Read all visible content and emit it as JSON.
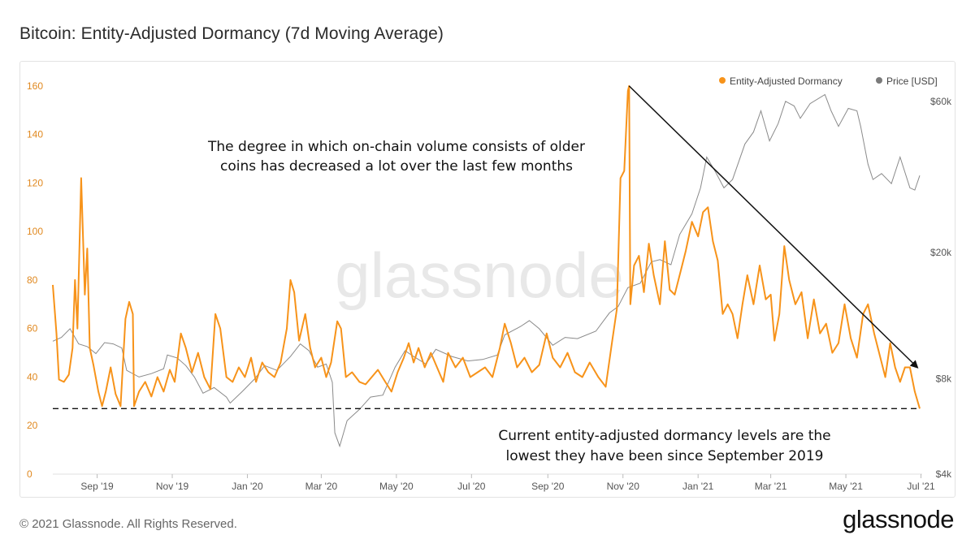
{
  "title": "Bitcoin: Entity-Adjusted Dormancy (7d Moving Average)",
  "footer": "© 2021 Glassnode. All Rights Reserved.",
  "brand": "glassnode",
  "watermark": "glassnode",
  "legend": {
    "items": [
      {
        "label": "Entity-Adjusted Dormancy",
        "color": "#f7931a"
      },
      {
        "label": "Price [USD]",
        "color": "#7a7a7a"
      }
    ],
    "placement": "top-right"
  },
  "annotations": {
    "top_line1": "The degree in which on-chain volume consists of older",
    "top_line2": "coins has decreased a lot over the last few months",
    "bottom_line1": "Current entity-adjusted dormancy levels are the",
    "bottom_line2": "lowest they have been since September 2019"
  },
  "chart_data": {
    "type": "line",
    "x_start": "2019-07-27",
    "x_end": "2021-06-30",
    "x_ticks": [
      {
        "date": "2019-09-01",
        "label": "Sep '19"
      },
      {
        "date": "2019-11-01",
        "label": "Nov '19"
      },
      {
        "date": "2020-01-01",
        "label": "Jan '20"
      },
      {
        "date": "2020-03-01",
        "label": "Mar '20"
      },
      {
        "date": "2020-05-01",
        "label": "May '20"
      },
      {
        "date": "2020-07-01",
        "label": "Jul '20"
      },
      {
        "date": "2020-09-01",
        "label": "Sep '20"
      },
      {
        "date": "2020-11-01",
        "label": "Nov '20"
      },
      {
        "date": "2021-01-01",
        "label": "Jan '21"
      },
      {
        "date": "2021-03-01",
        "label": "Mar '21"
      },
      {
        "date": "2021-05-01",
        "label": "May '21"
      },
      {
        "date": "2021-07-01",
        "label": "Jul '21"
      }
    ],
    "y_left": {
      "min": 0,
      "max": 170,
      "ticks": [
        "0",
        "20",
        "40",
        "60",
        "80",
        "100",
        "120",
        "140",
        "160"
      ]
    },
    "y_right": {
      "scale": "log",
      "min": 4000,
      "max": 80000,
      "ticks": [
        {
          "value": 4000,
          "label": "$4k"
        },
        {
          "value": 8000,
          "label": "$8k"
        },
        {
          "value": 20000,
          "label": "$20k"
        },
        {
          "value": 60000,
          "label": "$60k"
        }
      ]
    },
    "series": [
      {
        "name": "Entity-Adjusted Dormancy",
        "axis": "left",
        "color": "#f7931a",
        "points": [
          [
            "2019-07-27",
            78
          ],
          [
            "2019-07-30",
            58
          ],
          [
            "2019-08-01",
            39
          ],
          [
            "2019-08-05",
            38
          ],
          [
            "2019-08-09",
            41
          ],
          [
            "2019-08-12",
            52
          ],
          [
            "2019-08-14",
            80
          ],
          [
            "2019-08-16",
            60
          ],
          [
            "2019-08-19",
            122
          ],
          [
            "2019-08-22",
            74
          ],
          [
            "2019-08-24",
            93
          ],
          [
            "2019-08-26",
            52
          ],
          [
            "2019-08-29",
            45
          ],
          [
            "2019-09-02",
            34
          ],
          [
            "2019-09-05",
            28
          ],
          [
            "2019-09-08",
            34
          ],
          [
            "2019-09-12",
            44
          ],
          [
            "2019-09-16",
            33
          ],
          [
            "2019-09-20",
            28
          ],
          [
            "2019-09-24",
            64
          ],
          [
            "2019-09-27",
            71
          ],
          [
            "2019-09-30",
            66
          ],
          [
            "2019-10-01",
            28
          ],
          [
            "2019-10-05",
            34
          ],
          [
            "2019-10-10",
            38
          ],
          [
            "2019-10-15",
            32
          ],
          [
            "2019-10-20",
            40
          ],
          [
            "2019-10-25",
            34
          ],
          [
            "2019-10-30",
            43
          ],
          [
            "2019-11-03",
            38
          ],
          [
            "2019-11-08",
            58
          ],
          [
            "2019-11-12",
            52
          ],
          [
            "2019-11-17",
            42
          ],
          [
            "2019-11-22",
            50
          ],
          [
            "2019-11-27",
            40
          ],
          [
            "2019-12-02",
            35
          ],
          [
            "2019-12-06",
            66
          ],
          [
            "2019-12-10",
            60
          ],
          [
            "2019-12-15",
            40
          ],
          [
            "2019-12-20",
            38
          ],
          [
            "2019-12-25",
            44
          ],
          [
            "2019-12-30",
            40
          ],
          [
            "2020-01-04",
            48
          ],
          [
            "2020-01-08",
            38
          ],
          [
            "2020-01-13",
            46
          ],
          [
            "2020-01-18",
            42
          ],
          [
            "2020-01-23",
            40
          ],
          [
            "2020-01-28",
            46
          ],
          [
            "2020-02-02",
            60
          ],
          [
            "2020-02-05",
            80
          ],
          [
            "2020-02-08",
            75
          ],
          [
            "2020-02-12",
            55
          ],
          [
            "2020-02-17",
            66
          ],
          [
            "2020-02-21",
            52
          ],
          [
            "2020-02-25",
            44
          ],
          [
            "2020-03-01",
            48
          ],
          [
            "2020-03-05",
            40
          ],
          [
            "2020-03-09",
            46
          ],
          [
            "2020-03-14",
            63
          ],
          [
            "2020-03-17",
            60
          ],
          [
            "2020-03-21",
            40
          ],
          [
            "2020-03-26",
            42
          ],
          [
            "2020-04-01",
            38
          ],
          [
            "2020-04-06",
            37
          ],
          [
            "2020-04-11",
            40
          ],
          [
            "2020-04-16",
            43
          ],
          [
            "2020-04-22",
            38
          ],
          [
            "2020-04-27",
            34
          ],
          [
            "2020-05-02",
            42
          ],
          [
            "2020-05-07",
            48
          ],
          [
            "2020-05-11",
            54
          ],
          [
            "2020-05-15",
            46
          ],
          [
            "2020-05-19",
            52
          ],
          [
            "2020-05-24",
            44
          ],
          [
            "2020-05-29",
            50
          ],
          [
            "2020-06-03",
            44
          ],
          [
            "2020-06-08",
            38
          ],
          [
            "2020-06-12",
            50
          ],
          [
            "2020-06-18",
            44
          ],
          [
            "2020-06-24",
            48
          ],
          [
            "2020-06-30",
            40
          ],
          [
            "2020-07-06",
            42
          ],
          [
            "2020-07-12",
            44
          ],
          [
            "2020-07-18",
            40
          ],
          [
            "2020-07-24",
            52
          ],
          [
            "2020-07-28",
            62
          ],
          [
            "2020-08-02",
            54
          ],
          [
            "2020-08-07",
            44
          ],
          [
            "2020-08-13",
            48
          ],
          [
            "2020-08-19",
            42
          ],
          [
            "2020-08-25",
            45
          ],
          [
            "2020-08-31",
            58
          ],
          [
            "2020-09-05",
            48
          ],
          [
            "2020-09-11",
            44
          ],
          [
            "2020-09-17",
            50
          ],
          [
            "2020-09-23",
            42
          ],
          [
            "2020-09-29",
            40
          ],
          [
            "2020-10-05",
            46
          ],
          [
            "2020-10-12",
            40
          ],
          [
            "2020-10-18",
            36
          ],
          [
            "2020-10-23",
            54
          ],
          [
            "2020-10-27",
            68
          ],
          [
            "2020-10-30",
            122
          ],
          [
            "2020-11-02",
            125
          ],
          [
            "2020-11-05",
            158
          ],
          [
            "2020-11-06",
            160
          ],
          [
            "2020-11-07",
            70
          ],
          [
            "2020-11-10",
            86
          ],
          [
            "2020-11-14",
            90
          ],
          [
            "2020-11-18",
            75
          ],
          [
            "2020-11-22",
            95
          ],
          [
            "2020-11-26",
            82
          ],
          [
            "2020-12-01",
            70
          ],
          [
            "2020-12-05",
            96
          ],
          [
            "2020-12-09",
            76
          ],
          [
            "2020-12-13",
            74
          ],
          [
            "2020-12-18",
            84
          ],
          [
            "2020-12-22",
            92
          ],
          [
            "2020-12-27",
            104
          ],
          [
            "2021-01-01",
            98
          ],
          [
            "2021-01-05",
            108
          ],
          [
            "2021-01-09",
            110
          ],
          [
            "2021-01-13",
            96
          ],
          [
            "2021-01-17",
            88
          ],
          [
            "2021-01-21",
            66
          ],
          [
            "2021-01-25",
            70
          ],
          [
            "2021-01-29",
            66
          ],
          [
            "2021-02-02",
            56
          ],
          [
            "2021-02-06",
            70
          ],
          [
            "2021-02-10",
            82
          ],
          [
            "2021-02-15",
            70
          ],
          [
            "2021-02-20",
            86
          ],
          [
            "2021-02-25",
            72
          ],
          [
            "2021-03-01",
            74
          ],
          [
            "2021-03-04",
            55
          ],
          [
            "2021-03-08",
            66
          ],
          [
            "2021-03-12",
            94
          ],
          [
            "2021-03-16",
            80
          ],
          [
            "2021-03-21",
            70
          ],
          [
            "2021-03-26",
            75
          ],
          [
            "2021-03-31",
            56
          ],
          [
            "2021-04-05",
            72
          ],
          [
            "2021-04-10",
            58
          ],
          [
            "2021-04-15",
            62
          ],
          [
            "2021-04-20",
            50
          ],
          [
            "2021-04-25",
            54
          ],
          [
            "2021-04-30",
            70
          ],
          [
            "2021-05-05",
            56
          ],
          [
            "2021-05-10",
            48
          ],
          [
            "2021-05-15",
            66
          ],
          [
            "2021-05-19",
            70
          ],
          [
            "2021-05-24",
            58
          ],
          [
            "2021-05-28",
            50
          ],
          [
            "2021-06-02",
            40
          ],
          [
            "2021-06-06",
            54
          ],
          [
            "2021-06-10",
            44
          ],
          [
            "2021-06-14",
            38
          ],
          [
            "2021-06-18",
            44
          ],
          [
            "2021-06-22",
            44
          ],
          [
            "2021-06-26",
            34
          ],
          [
            "2021-06-30",
            27
          ]
        ]
      },
      {
        "name": "Price [USD]",
        "axis": "right",
        "color": "#7a7a7a",
        "points": [
          [
            "2019-07-27",
            10500
          ],
          [
            "2019-08-03",
            10800
          ],
          [
            "2019-08-10",
            11500
          ],
          [
            "2019-08-17",
            10300
          ],
          [
            "2019-08-24",
            10100
          ],
          [
            "2019-08-31",
            9600
          ],
          [
            "2019-09-07",
            10400
          ],
          [
            "2019-09-14",
            10300
          ],
          [
            "2019-09-21",
            10000
          ],
          [
            "2019-09-25",
            8500
          ],
          [
            "2019-10-05",
            8100
          ],
          [
            "2019-10-15",
            8300
          ],
          [
            "2019-10-25",
            8600
          ],
          [
            "2019-10-28",
            9500
          ],
          [
            "2019-11-05",
            9300
          ],
          [
            "2019-11-12",
            8800
          ],
          [
            "2019-11-19",
            8100
          ],
          [
            "2019-11-26",
            7200
          ],
          [
            "2019-12-05",
            7500
          ],
          [
            "2019-12-15",
            7000
          ],
          [
            "2019-12-18",
            6700
          ],
          [
            "2019-12-28",
            7300
          ],
          [
            "2020-01-07",
            8000
          ],
          [
            "2020-01-15",
            8800
          ],
          [
            "2020-01-25",
            8500
          ],
          [
            "2020-02-05",
            9400
          ],
          [
            "2020-02-13",
            10300
          ],
          [
            "2020-02-20",
            9800
          ],
          [
            "2020-02-27",
            8700
          ],
          [
            "2020-03-05",
            8900
          ],
          [
            "2020-03-10",
            7800
          ],
          [
            "2020-03-12",
            5400
          ],
          [
            "2020-03-16",
            4900
          ],
          [
            "2020-03-22",
            5900
          ],
          [
            "2020-04-01",
            6400
          ],
          [
            "2020-04-10",
            7000
          ],
          [
            "2020-04-20",
            7100
          ],
          [
            "2020-04-30",
            8700
          ],
          [
            "2020-05-08",
            9800
          ],
          [
            "2020-05-15",
            9400
          ],
          [
            "2020-05-25",
            8900
          ],
          [
            "2020-06-02",
            9900
          ],
          [
            "2020-06-15",
            9400
          ],
          [
            "2020-06-28",
            9100
          ],
          [
            "2020-07-10",
            9200
          ],
          [
            "2020-07-22",
            9500
          ],
          [
            "2020-07-28",
            11000
          ],
          [
            "2020-08-10",
            11700
          ],
          [
            "2020-08-17",
            12200
          ],
          [
            "2020-08-25",
            11500
          ],
          [
            "2020-09-05",
            10200
          ],
          [
            "2020-09-15",
            10800
          ],
          [
            "2020-09-25",
            10700
          ],
          [
            "2020-10-10",
            11300
          ],
          [
            "2020-10-21",
            12900
          ],
          [
            "2020-10-28",
            13500
          ],
          [
            "2020-11-05",
            15500
          ],
          [
            "2020-11-15",
            16000
          ],
          [
            "2020-11-24",
            18700
          ],
          [
            "2020-12-01",
            19000
          ],
          [
            "2020-12-10",
            18300
          ],
          [
            "2020-12-17",
            22800
          ],
          [
            "2020-12-27",
            26500
          ],
          [
            "2021-01-03",
            32000
          ],
          [
            "2021-01-08",
            40000
          ],
          [
            "2021-01-15",
            36000
          ],
          [
            "2021-01-22",
            32000
          ],
          [
            "2021-01-29",
            34000
          ],
          [
            "2021-02-08",
            44000
          ],
          [
            "2021-02-15",
            48000
          ],
          [
            "2021-02-21",
            56000
          ],
          [
            "2021-02-28",
            45000
          ],
          [
            "2021-03-07",
            51000
          ],
          [
            "2021-03-13",
            60000
          ],
          [
            "2021-03-20",
            58000
          ],
          [
            "2021-03-25",
            53000
          ],
          [
            "2021-04-02",
            59000
          ],
          [
            "2021-04-14",
            63000
          ],
          [
            "2021-04-19",
            56000
          ],
          [
            "2021-04-25",
            50000
          ],
          [
            "2021-05-03",
            57000
          ],
          [
            "2021-05-10",
            56000
          ],
          [
            "2021-05-13",
            50000
          ],
          [
            "2021-05-19",
            38000
          ],
          [
            "2021-05-23",
            34000
          ],
          [
            "2021-05-30",
            35500
          ],
          [
            "2021-06-07",
            33000
          ],
          [
            "2021-06-14",
            40000
          ],
          [
            "2021-06-22",
            32000
          ],
          [
            "2021-06-26",
            31500
          ],
          [
            "2021-06-30",
            35000
          ]
        ]
      }
    ],
    "arrow": {
      "from": [
        "2020-11-06",
        160
      ],
      "to": [
        "2021-06-28",
        44
      ]
    },
    "baseline": {
      "value": 27,
      "style": "dashed"
    }
  }
}
